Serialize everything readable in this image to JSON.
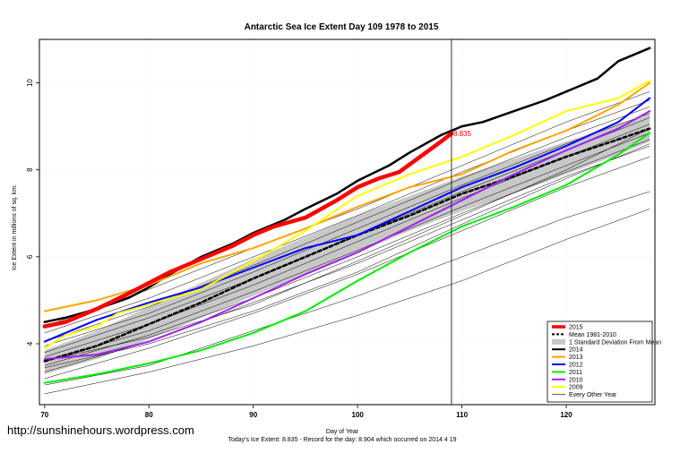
{
  "watermark": "http://sunshinehours.wordpress.com",
  "chart_data": {
    "type": "line",
    "title": "Antarctic Sea Ice Extent Day 109 1978 to 2015",
    "xlabel": "Day of Year",
    "ylabel": "Ice Extent in millions of sq. km.",
    "xlim": [
      69.5,
      128.5
    ],
    "ylim": [
      2.6,
      11.0
    ],
    "x_ticks": [
      70,
      80,
      90,
      100,
      110,
      120
    ],
    "y_ticks": [
      4,
      6,
      8,
      10
    ],
    "grid": true,
    "legend_position": "bottom-right",
    "reference_line_x": 109,
    "point_label": {
      "x": 109,
      "y": 8.835,
      "text": "8.835"
    },
    "footer_lines": [
      "Today's Ice Extent: 8.835  - Record for the day: 8.904 which occurred on 2014 4 19"
    ],
    "legend": [
      {
        "label": "2015",
        "color": "#ff0000",
        "style": "thick"
      },
      {
        "label": "Mean 1981-2010",
        "color": "#000000",
        "style": "dashed"
      },
      {
        "label": "1 Standard Deviation From Mean",
        "color": "#c8c8c8",
        "style": "box"
      },
      {
        "label": "2014",
        "color": "#000000",
        "style": "line"
      },
      {
        "label": "2013",
        "color": "#ffa500",
        "style": "line"
      },
      {
        "label": "2012",
        "color": "#0000ff",
        "style": "line"
      },
      {
        "label": "2011",
        "color": "#00ee00",
        "style": "line"
      },
      {
        "label": "2010",
        "color": "#a020f0",
        "style": "line"
      },
      {
        "label": "2009",
        "color": "#ffff00",
        "style": "line"
      },
      {
        "label": "Every Other Year",
        "color": "#000000",
        "style": "thin"
      }
    ],
    "sd_band": {
      "x": [
        70,
        75,
        80,
        85,
        90,
        95,
        100,
        105,
        110,
        115,
        120,
        125,
        128
      ],
      "upper": [
        3.85,
        4.3,
        4.85,
        5.4,
        5.95,
        6.45,
        6.95,
        7.4,
        7.85,
        8.25,
        8.65,
        9.05,
        9.3
      ],
      "lower": [
        3.3,
        3.65,
        4.1,
        4.6,
        5.1,
        5.6,
        6.1,
        6.6,
        7.05,
        7.45,
        7.9,
        8.35,
        8.65
      ]
    },
    "other_years": [
      {
        "x": [
          70,
          80,
          90,
          100,
          110,
          120,
          128
        ],
        "values": [
          3.05,
          3.5,
          4.3,
          5.1,
          6.0,
          6.9,
          7.5
        ]
      },
      {
        "x": [
          70,
          80,
          90,
          100,
          110,
          120,
          128
        ],
        "values": [
          2.85,
          3.35,
          3.95,
          4.65,
          5.45,
          6.4,
          7.1
        ]
      },
      {
        "x": [
          70,
          80,
          90,
          100,
          110,
          120,
          128
        ],
        "values": [
          3.2,
          3.9,
          4.7,
          5.6,
          6.6,
          7.6,
          8.3
        ]
      },
      {
        "x": [
          70,
          80,
          90,
          100,
          110,
          120,
          128
        ],
        "values": [
          3.35,
          4.05,
          4.95,
          5.85,
          6.85,
          7.85,
          8.55
        ]
      },
      {
        "x": [
          70,
          80,
          90,
          100,
          110,
          120,
          128
        ],
        "values": [
          3.5,
          4.2,
          5.05,
          6.0,
          7.0,
          7.95,
          8.7
        ]
      },
      {
        "x": [
          70,
          80,
          90,
          100,
          110,
          120,
          128
        ],
        "values": [
          3.6,
          4.3,
          5.2,
          6.15,
          7.15,
          8.1,
          8.85
        ]
      },
      {
        "x": [
          70,
          80,
          90,
          100,
          110,
          120,
          128
        ],
        "values": [
          3.7,
          4.45,
          5.35,
          6.35,
          7.35,
          8.3,
          9.05
        ]
      },
      {
        "x": [
          70,
          80,
          90,
          100,
          110,
          120,
          128
        ],
        "values": [
          3.8,
          4.6,
          5.5,
          6.5,
          7.5,
          8.45,
          9.2
        ]
      },
      {
        "x": [
          70,
          80,
          90,
          100,
          110,
          120,
          128
        ],
        "values": [
          3.95,
          4.7,
          5.65,
          6.65,
          7.65,
          8.6,
          9.3
        ]
      },
      {
        "x": [
          70,
          80,
          90,
          100,
          110,
          120,
          128
        ],
        "values": [
          4.05,
          4.85,
          5.8,
          6.8,
          7.8,
          8.75,
          9.45
        ]
      },
      {
        "x": [
          70,
          80,
          90,
          100,
          110,
          120,
          128
        ],
        "values": [
          4.25,
          5.05,
          6.0,
          6.95,
          7.95,
          8.9,
          9.6
        ]
      },
      {
        "x": [
          70,
          80,
          90,
          100,
          110,
          120,
          128
        ],
        "values": [
          4.4,
          5.25,
          6.2,
          7.1,
          8.1,
          9.1,
          9.8
        ]
      },
      {
        "x": [
          70,
          80,
          90,
          100,
          110,
          120,
          128
        ],
        "values": [
          3.45,
          4.0,
          4.75,
          5.65,
          6.75,
          7.8,
          8.6
        ]
      },
      {
        "x": [
          70,
          80,
          90,
          100,
          110,
          120,
          128
        ],
        "values": [
          3.6,
          4.15,
          4.9,
          5.9,
          6.95,
          8.0,
          8.95
        ]
      }
    ],
    "series": [
      {
        "name": "Mean 1981-2010",
        "color": "#000000",
        "width": 2.5,
        "dash": "4,3",
        "x": [
          70,
          75,
          80,
          85,
          90,
          95,
          100,
          105,
          110,
          115,
          120,
          125,
          128
        ],
        "values": [
          3.6,
          3.95,
          4.45,
          4.95,
          5.5,
          6.0,
          6.5,
          6.95,
          7.45,
          7.85,
          8.3,
          8.7,
          8.95
        ]
      },
      {
        "name": "2014",
        "color": "#000000",
        "width": 2.5,
        "x": [
          70,
          72,
          75,
          78,
          80,
          82,
          85,
          88,
          90,
          93,
          95,
          98,
          100,
          103,
          105,
          108,
          110,
          112,
          115,
          118,
          120,
          123,
          125,
          128
        ],
        "values": [
          4.5,
          4.6,
          4.8,
          5.05,
          5.3,
          5.6,
          6.0,
          6.3,
          6.55,
          6.85,
          7.1,
          7.45,
          7.75,
          8.1,
          8.4,
          8.8,
          9.0,
          9.1,
          9.35,
          9.6,
          9.8,
          10.1,
          10.5,
          10.8
        ]
      },
      {
        "name": "2013",
        "color": "#ffa500",
        "width": 2,
        "x": [
          70,
          75,
          80,
          85,
          90,
          95,
          100,
          105,
          110,
          115,
          120,
          125,
          128
        ],
        "values": [
          4.75,
          5.0,
          5.35,
          5.85,
          6.2,
          6.65,
          7.15,
          7.6,
          7.9,
          8.45,
          8.9,
          9.5,
          10.0
        ]
      },
      {
        "name": "2012",
        "color": "#0000ff",
        "width": 2,
        "x": [
          70,
          75,
          80,
          85,
          90,
          95,
          100,
          105,
          110,
          115,
          120,
          125,
          128
        ],
        "values": [
          4.05,
          4.55,
          4.95,
          5.3,
          5.75,
          6.2,
          6.5,
          7.05,
          7.6,
          8.05,
          8.55,
          9.1,
          9.65
        ]
      },
      {
        "name": "2011",
        "color": "#00ee00",
        "width": 2,
        "x": [
          70,
          75,
          80,
          85,
          90,
          95,
          100,
          105,
          110,
          115,
          120,
          125,
          128
        ],
        "values": [
          3.1,
          3.3,
          3.55,
          3.85,
          4.25,
          4.75,
          5.45,
          6.1,
          6.7,
          7.15,
          7.65,
          8.35,
          8.85
        ]
      },
      {
        "name": "2010",
        "color": "#a020f0",
        "width": 2,
        "x": [
          70,
          75,
          80,
          85,
          90,
          95,
          100,
          105,
          110,
          115,
          120,
          125,
          128
        ],
        "values": [
          3.65,
          3.75,
          4.05,
          4.5,
          5.05,
          5.6,
          6.1,
          6.7,
          7.3,
          7.9,
          8.45,
          8.95,
          9.35
        ]
      },
      {
        "name": "2009",
        "color": "#ffff00",
        "width": 2,
        "x": [
          70,
          72,
          75,
          77,
          80,
          85,
          90,
          95,
          100,
          105,
          110,
          115,
          120,
          125,
          128
        ],
        "values": [
          3.9,
          4.2,
          4.4,
          4.7,
          4.9,
          5.25,
          5.9,
          6.6,
          7.4,
          7.9,
          8.3,
          8.8,
          9.35,
          9.65,
          10.05
        ]
      },
      {
        "name": "2015",
        "color": "#ff0000",
        "width": 4.5,
        "x": [
          70,
          72,
          75,
          78,
          80,
          82,
          85,
          88,
          90,
          92,
          95,
          98,
          100,
          102,
          104,
          106,
          108,
          109
        ],
        "values": [
          4.4,
          4.5,
          4.8,
          5.15,
          5.4,
          5.65,
          5.95,
          6.25,
          6.5,
          6.7,
          6.9,
          7.3,
          7.6,
          7.8,
          7.95,
          8.3,
          8.65,
          8.835
        ]
      }
    ]
  }
}
